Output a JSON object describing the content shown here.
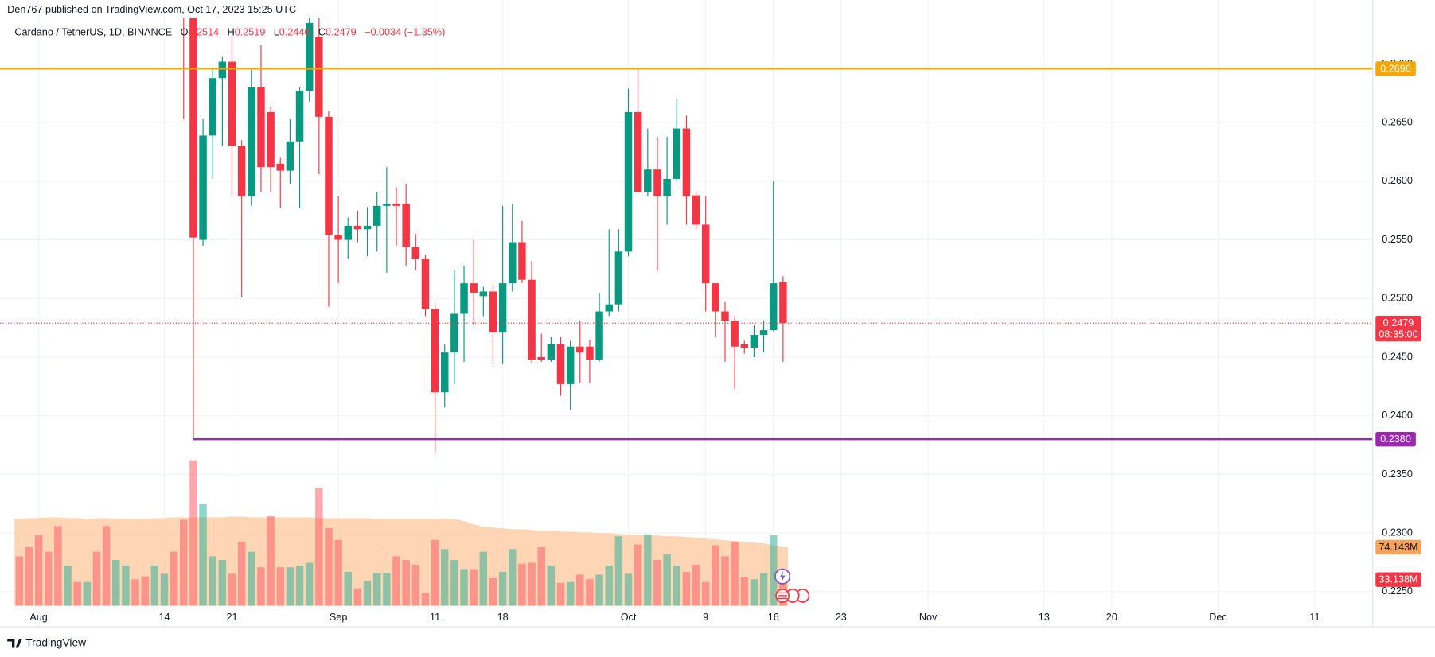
{
  "header": {
    "publisher": "Den767 published on TradingView.com, Oct 17, 2023 15:25 UTC"
  },
  "footer": {
    "brand": "TradingView"
  },
  "chart_data": {
    "type": "candlestick",
    "symbol": "Cardano / TetherUS, 1D, BINANCE",
    "legend": [
      {
        "label": "O",
        "value": 0.2514
      },
      {
        "label": "H",
        "value": 0.2519
      },
      {
        "label": "L",
        "value": 0.2446
      },
      {
        "label": "C",
        "value": 0.2479
      }
    ],
    "change": "−0.0034 (−1.35%)",
    "up_color": "#089981",
    "down_color": "#f23645",
    "grid": true,
    "xlim": [
      "2023-07-28",
      "2023-12-17"
    ],
    "xticks": [
      {
        "value": "2023-08-01",
        "label": "Aug"
      },
      {
        "value": "2023-08-14",
        "label": "14"
      },
      {
        "value": "2023-08-21",
        "label": "21"
      },
      {
        "value": "2023-09-01",
        "label": "Sep"
      },
      {
        "value": "2023-09-11",
        "label": "11"
      },
      {
        "value": "2023-09-18",
        "label": "18"
      },
      {
        "value": "2023-10-01",
        "label": "Oct"
      },
      {
        "value": "2023-10-09",
        "label": "9"
      },
      {
        "value": "2023-10-16",
        "label": "16"
      },
      {
        "value": "2023-10-23",
        "label": "23"
      },
      {
        "value": "2023-11-01",
        "label": "Nov"
      },
      {
        "value": "2023-11-13",
        "label": "13"
      },
      {
        "value": "2023-11-20",
        "label": "20"
      },
      {
        "value": "2023-12-01",
        "label": "Dec"
      },
      {
        "value": "2023-12-11",
        "label": "11"
      }
    ],
    "ylim": [
      0.222,
      0.2739
    ],
    "yticks": [
      {
        "value": 0.225,
        "label": "0.2250"
      },
      {
        "value": 0.23,
        "label": "0.2300"
      },
      {
        "value": 0.235,
        "label": "0.2350"
      },
      {
        "value": 0.24,
        "label": "0.2400"
      },
      {
        "value": 0.245,
        "label": "0.2450"
      },
      {
        "value": 0.25,
        "label": "0.2500"
      },
      {
        "value": 0.255,
        "label": "0.2550"
      },
      {
        "value": 0.26,
        "label": "0.2600"
      },
      {
        "value": 0.265,
        "label": "0.2650"
      },
      {
        "value": 0.27,
        "label": "0.2700"
      }
    ],
    "x": [
      "2023-08-16",
      "2023-08-17",
      "2023-08-18",
      "2023-08-19",
      "2023-08-20",
      "2023-08-21",
      "2023-08-22",
      "2023-08-23",
      "2023-08-24",
      "2023-08-25",
      "2023-08-26",
      "2023-08-27",
      "2023-08-28",
      "2023-08-29",
      "2023-08-30",
      "2023-08-31",
      "2023-09-01",
      "2023-09-02",
      "2023-09-03",
      "2023-09-04",
      "2023-09-05",
      "2023-09-06",
      "2023-09-07",
      "2023-09-08",
      "2023-09-09",
      "2023-09-10",
      "2023-09-11",
      "2023-09-12",
      "2023-09-13",
      "2023-09-14",
      "2023-09-15",
      "2023-09-16",
      "2023-09-17",
      "2023-09-18",
      "2023-09-19",
      "2023-09-20",
      "2023-09-21",
      "2023-09-22",
      "2023-09-23",
      "2023-09-24",
      "2023-09-25",
      "2023-09-26",
      "2023-09-27",
      "2023-09-28",
      "2023-09-29",
      "2023-09-30",
      "2023-10-01",
      "2023-10-02",
      "2023-10-03",
      "2023-10-04",
      "2023-10-05",
      "2023-10-06",
      "2023-10-07",
      "2023-10-08",
      "2023-10-09",
      "2023-10-10",
      "2023-10-11",
      "2023-10-12",
      "2023-10-13",
      "2023-10-14",
      "2023-10-15",
      "2023-10-16",
      "2023-10-17"
    ],
    "open": [
      0.279,
      0.276,
      0.255,
      0.2639,
      0.2688,
      0.2702,
      0.263,
      0.2587,
      0.268,
      0.2659,
      0.2615,
      0.2609,
      0.2634,
      0.2677,
      0.2723,
      0.2655,
      0.2554,
      0.255,
      0.2562,
      0.2559,
      0.2562,
      0.2579,
      0.2581,
      0.2581,
      0.2544,
      0.2534,
      0.2491,
      0.242,
      0.2454,
      0.2487,
      0.2513,
      0.2502,
      0.2506,
      0.2471,
      0.2513,
      0.2548,
      0.2516,
      0.245,
      0.2448,
      0.2461,
      0.2427,
      0.2459,
      0.2459,
      0.2448,
      0.2489,
      0.2495,
      0.254,
      0.2659,
      0.2591,
      0.261,
      0.2587,
      0.2602,
      0.2645,
      0.2588,
      0.2563,
      0.2513,
      0.2489,
      0.2481,
      0.2461,
      0.2458,
      0.2469,
      0.2473,
      0.2514
    ],
    "high": [
      0.283,
      0.2765,
      0.2653,
      0.2696,
      0.2706,
      0.2723,
      0.2635,
      0.2696,
      0.2716,
      0.2664,
      0.262,
      0.2653,
      0.268,
      0.2745,
      0.2739,
      0.266,
      0.2587,
      0.2569,
      0.2575,
      0.2578,
      0.2591,
      0.2612,
      0.2595,
      0.2598,
      0.2555,
      0.2537,
      0.2495,
      0.2461,
      0.2524,
      0.2528,
      0.255,
      0.251,
      0.2512,
      0.2579,
      0.2581,
      0.2566,
      0.2532,
      0.247,
      0.2467,
      0.2467,
      0.2464,
      0.2481,
      0.2465,
      0.2505,
      0.2559,
      0.2559,
      0.2679,
      0.2696,
      0.2645,
      0.2638,
      0.2638,
      0.267,
      0.2656,
      0.2591,
      0.2587,
      0.2513,
      0.2497,
      0.2485,
      0.2464,
      0.2477,
      0.2481,
      0.26,
      0.2519
    ],
    "low": [
      0.2653,
      0.238,
      0.2545,
      0.2602,
      0.263,
      0.2587,
      0.2501,
      0.2579,
      0.2591,
      0.2591,
      0.2577,
      0.2598,
      0.2577,
      0.2668,
      0.2606,
      0.2493,
      0.2513,
      0.2534,
      0.2548,
      0.2536,
      0.254,
      0.2522,
      0.2545,
      0.2528,
      0.2524,
      0.2485,
      0.2368,
      0.2407,
      0.2427,
      0.2446,
      0.2477,
      0.2485,
      0.2444,
      0.2444,
      0.2506,
      0.2513,
      0.2445,
      0.2446,
      0.2446,
      0.2417,
      0.2405,
      0.2428,
      0.2428,
      0.2446,
      0.2485,
      0.2489,
      0.2536,
      0.259,
      0.2587,
      0.2524,
      0.2563,
      0.26,
      0.2563,
      0.2559,
      0.2489,
      0.2467,
      0.2446,
      0.2423,
      0.2453,
      0.245,
      0.2454,
      0.2472,
      0.2446
    ],
    "close": [
      0.276,
      0.2552,
      0.2639,
      0.2688,
      0.2702,
      0.263,
      0.2587,
      0.268,
      0.2612,
      0.2612,
      0.2609,
      0.2634,
      0.2677,
      0.2735,
      0.2655,
      0.2554,
      0.255,
      0.2562,
      0.2559,
      0.2562,
      0.2579,
      0.2581,
      0.2579,
      0.2544,
      0.2534,
      0.2491,
      0.242,
      0.2454,
      0.2487,
      0.2513,
      0.2505,
      0.2506,
      0.2471,
      0.2513,
      0.2548,
      0.2516,
      0.2448,
      0.2448,
      0.2461,
      0.2427,
      0.2459,
      0.2454,
      0.2448,
      0.2489,
      0.2495,
      0.254,
      0.2659,
      0.2591,
      0.261,
      0.2587,
      0.2602,
      0.2645,
      0.2587,
      0.2563,
      0.2513,
      0.2489,
      0.2481,
      0.2459,
      0.2458,
      0.2469,
      0.2473,
      0.2513,
      0.2479
    ],
    "hlines": [
      {
        "value": 0.2696,
        "color": "#f7a600"
      },
      {
        "value": 0.238,
        "label": "0.2380",
        "color": "#9c27b0",
        "from": "2023-08-17"
      }
    ],
    "last": {
      "value": 0.2479,
      "countdown": "08:35:00",
      "color": "#f23645"
    },
    "volume": {
      "ylim": [
        0,
        600
      ],
      "x": [
        "2023-07-30",
        "2023-07-31",
        "2023-08-01",
        "2023-08-02",
        "2023-08-03",
        "2023-08-04",
        "2023-08-05",
        "2023-08-06",
        "2023-08-07",
        "2023-08-08",
        "2023-08-09",
        "2023-08-10",
        "2023-08-11",
        "2023-08-12",
        "2023-08-13",
        "2023-08-14",
        "2023-08-15",
        "2023-08-16",
        "2023-08-17",
        "2023-08-18",
        "2023-08-19",
        "2023-08-20",
        "2023-08-21",
        "2023-08-22",
        "2023-08-23",
        "2023-08-24",
        "2023-08-25",
        "2023-08-26",
        "2023-08-27",
        "2023-08-28",
        "2023-08-29",
        "2023-08-30",
        "2023-08-31",
        "2023-09-01",
        "2023-09-02",
        "2023-09-03",
        "2023-09-04",
        "2023-09-05",
        "2023-09-06",
        "2023-09-07",
        "2023-09-08",
        "2023-09-09",
        "2023-09-10",
        "2023-09-11",
        "2023-09-12",
        "2023-09-13",
        "2023-09-14",
        "2023-09-15",
        "2023-09-16",
        "2023-09-17",
        "2023-09-18",
        "2023-09-19",
        "2023-09-20",
        "2023-09-21",
        "2023-09-22",
        "2023-09-23",
        "2023-09-24",
        "2023-09-25",
        "2023-09-26",
        "2023-09-27",
        "2023-09-28",
        "2023-09-29",
        "2023-09-30",
        "2023-10-01",
        "2023-10-02",
        "2023-10-03",
        "2023-10-04",
        "2023-10-05",
        "2023-10-06",
        "2023-10-07",
        "2023-10-08",
        "2023-10-09",
        "2023-10-10",
        "2023-10-11",
        "2023-10-12",
        "2023-10-13",
        "2023-10-14",
        "2023-10-15",
        "2023-10-16",
        "2023-10-17"
      ],
      "values": [
        62.6,
        74.1,
        89.2,
        68.4,
        100.8,
        51.0,
        30.1,
        30.1,
        68.4,
        100.8,
        57.9,
        51.0,
        33.6,
        37.1,
        51.0,
        40.5,
        68.4,
        108.9,
        184.2,
        128.6,
        62.6,
        57.9,
        40.5,
        81.1,
        68.4,
        48.7,
        113.5,
        48.7,
        48.7,
        51.0,
        54.4,
        149.4,
        98.5,
        83.4,
        42.9,
        22.0,
        31.3,
        41.7,
        41.7,
        62.6,
        57.9,
        52.1,
        16.2,
        83.4,
        71.8,
        57.9,
        46.3,
        46.3,
        68.4,
        34.8,
        42.9,
        71.8,
        53.3,
        54.4,
        74.1,
        51.0,
        29.0,
        30.1,
        39.4,
        33.6,
        39.4,
        51.0,
        88.0,
        40.5,
        77.6,
        90.4,
        57.9,
        64.9,
        51.0,
        42.9,
        52.1,
        30.1,
        76.5,
        62.6,
        81.1,
        35.9,
        33.6,
        41.7,
        89.2,
        33.138
      ],
      "colors": [
        "#f7525f",
        "#f7525f",
        "#f7525f",
        "#f7525f",
        "#f7525f",
        "#22ab94",
        "#f7525f",
        "#22ab94",
        "#f7525f",
        "#f7525f",
        "#22ab94",
        "#22ab94",
        "#f7525f",
        "#f7525f",
        "#22ab94",
        "#22ab94",
        "#f7525f",
        "#f7525f",
        "#f7525f",
        "#22ab94",
        "#22ab94",
        "#22ab94",
        "#f7525f",
        "#f7525f",
        "#22ab94",
        "#f7525f",
        "#f7525f",
        "#f7525f",
        "#22ab94",
        "#22ab94",
        "#22ab94",
        "#f7525f",
        "#f7525f",
        "#f7525f",
        "#22ab94",
        "#f7525f",
        "#22ab94",
        "#22ab94",
        "#22ab94",
        "#f7525f",
        "#f7525f",
        "#f7525f",
        "#f7525f",
        "#f7525f",
        "#22ab94",
        "#22ab94",
        "#22ab94",
        "#f7525f",
        "#22ab94",
        "#f7525f",
        "#22ab94",
        "#22ab94",
        "#f7525f",
        "#f7525f",
        "#f7525f",
        "#22ab94",
        "#f7525f",
        "#22ab94",
        "#f7525f",
        "#f7525f",
        "#22ab94",
        "#22ab94",
        "#22ab94",
        "#22ab94",
        "#f7525f",
        "#22ab94",
        "#f7525f",
        "#22ab94",
        "#22ab94",
        "#f7525f",
        "#f7525f",
        "#f7525f",
        "#f7525f",
        "#f7525f",
        "#f7525f",
        "#f7525f",
        "#22ab94",
        "#22ab94",
        "#22ab94",
        "#f7525f"
      ],
      "last_label": "33.138M",
      "last_color": "#f23645",
      "ma": {
        "values": [
          110,
          111,
          111,
          112,
          112,
          111,
          111,
          110,
          111,
          111,
          110,
          110,
          110,
          110,
          111,
          111,
          112,
          112,
          112,
          112,
          112,
          112,
          113,
          113,
          112,
          112,
          112,
          112,
          112,
          112,
          112,
          111,
          111,
          111,
          111,
          111,
          111,
          110,
          110,
          110,
          110,
          110,
          110,
          110,
          110,
          110,
          107,
          103,
          100,
          99,
          98,
          97,
          97,
          96,
          95,
          95,
          94,
          94,
          93,
          93,
          92,
          92,
          91,
          90,
          90,
          89,
          89,
          88,
          88,
          87,
          86,
          85,
          84,
          83,
          82,
          81,
          80,
          79,
          77,
          74.143
        ],
        "color": "#ffcca3",
        "last_label": "74.143M",
        "last_color": "#f7a35c"
      }
    }
  }
}
